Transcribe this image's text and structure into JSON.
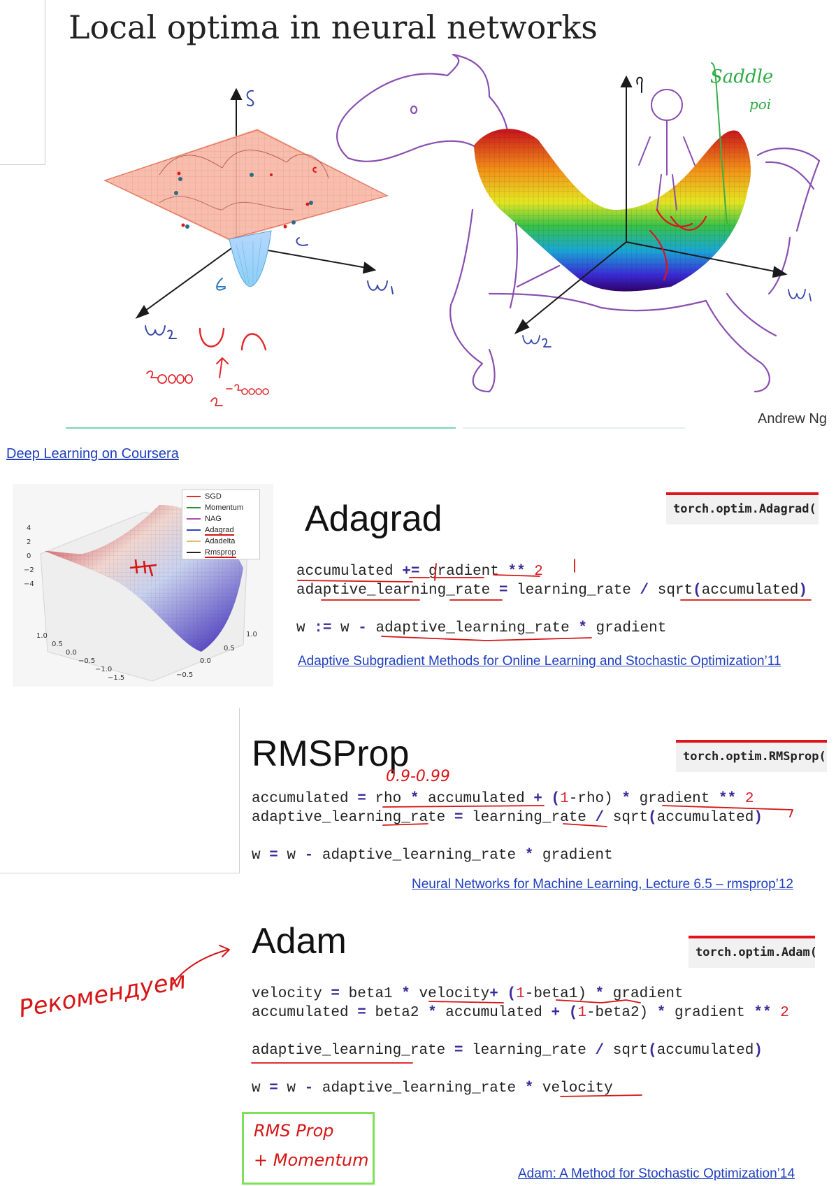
{
  "slide": {
    "title": "Local optima in neural networks",
    "author": "Andrew Ng",
    "annotations": {
      "axis_j": "J",
      "axis_w1": "ω₁",
      "axis_w2": "ω₂",
      "count": "20000",
      "power_base": "2",
      "power_exp": "-20000",
      "saddle": "Saddle",
      "saddle_point": "poi"
    }
  },
  "source_link": "Deep Learning on Coursera",
  "plot_inset": {
    "legend": [
      "SGD",
      "Momentum",
      "NAG",
      "Adagrad",
      "Adadelta",
      "Rmsprop"
    ],
    "legend_colors": [
      "#e02b2b",
      "#2e8b3a",
      "#b04fb0",
      "#3040c0",
      "#d9c06a",
      "#222222"
    ],
    "z_ticks": [
      "4",
      "2",
      "0",
      "−2",
      "−4"
    ],
    "x_ticks": [
      "1.0",
      "0.5",
      "0.0",
      "−0.5",
      "−1.0",
      "−1.5"
    ],
    "y_ticks": [
      "1.0",
      "0.5",
      "0.0",
      "−0.5"
    ]
  },
  "adagrad": {
    "title": "Adagrad",
    "torch": "torch.optim.Adagrad(",
    "line1": {
      "a": "accumulated ",
      "op": "+=",
      "b": " gradient ",
      "pow": "**",
      "n": " 2"
    },
    "line2": {
      "a": "adaptive_learning_rate ",
      "eq": "=",
      "b": " learning_rate ",
      "div": "/",
      "c": " sqrt",
      "p1": "(",
      "d": "accumulated",
      "p2": ")"
    },
    "line3": {
      "a": "w ",
      "op": ":=",
      "b": " w ",
      "minus": "-",
      "c": " adaptive_learning_rate ",
      "mul": "*",
      "d": " gradient"
    },
    "ref": "Adaptive Subgradient Methods for Online Learning and Stochastic Optimization’11"
  },
  "rmsprop": {
    "title": "RMSProp",
    "torch": "torch.optim.RMSprop(",
    "note": "0.9-0.99",
    "line1": {
      "a": "accumulated ",
      "eq": "=",
      "b": " rho ",
      "mul": "*",
      "c": " accumulated ",
      "plus": "+",
      "d": " (",
      "one": "1",
      "e": "-rho) ",
      "mul2": "*",
      "f": " gradient ",
      "pow": "**",
      "n": " 2"
    },
    "line2": {
      "a": "adaptive_learning_rate ",
      "eq": "=",
      "b": " learning_rate ",
      "div": "/",
      "c": " sqrt",
      "p1": "(",
      "d": "accumulated",
      "p2": ")"
    },
    "line3": {
      "a": "w ",
      "eq": "=",
      "b": " w ",
      "minus": "-",
      "c": " adaptive_learning_rate ",
      "mul": "*",
      "d": " gradient"
    },
    "ref": "Neural Networks for Machine Learning, Lecture 6.5 – rmsprop’12"
  },
  "adam": {
    "title": "Adam",
    "torch": "torch.optim.Adam(",
    "recommend_note": "Рекомендуем",
    "box_note_1": "RMS Prop",
    "box_note_2": "+ Momentum",
    "line1": {
      "a": "velocity ",
      "eq": "=",
      "b": " beta1 ",
      "mul": "*",
      "c": " velocity",
      "plus": "+",
      "d": " (",
      "one": "1",
      "e": "-beta1) ",
      "mul2": "*",
      "f": " gradient"
    },
    "line2": {
      "a": "accumulated ",
      "eq": "=",
      "b": " beta2 ",
      "mul": "*",
      "c": " accumulated ",
      "plus": "+",
      "d": " (",
      "one": "1",
      "e": "-beta2) ",
      "mul2": "*",
      "f": " gradient ",
      "pow": "**",
      "n": " 2"
    },
    "line3": {
      "a": "adaptive_learning_rate ",
      "eq": "=",
      "b": " learning_rate ",
      "div": "/",
      "c": " sqrt",
      "p1": "(",
      "d": "accumulated",
      "p2": ")"
    },
    "line4": {
      "a": "w ",
      "eq": "=",
      "b": " w ",
      "minus": "-",
      "c": " adaptive_learning_rate ",
      "mul": "*",
      "d": " velocity"
    },
    "ref": "Adam: A Method for Stochastic Optimization’14"
  }
}
